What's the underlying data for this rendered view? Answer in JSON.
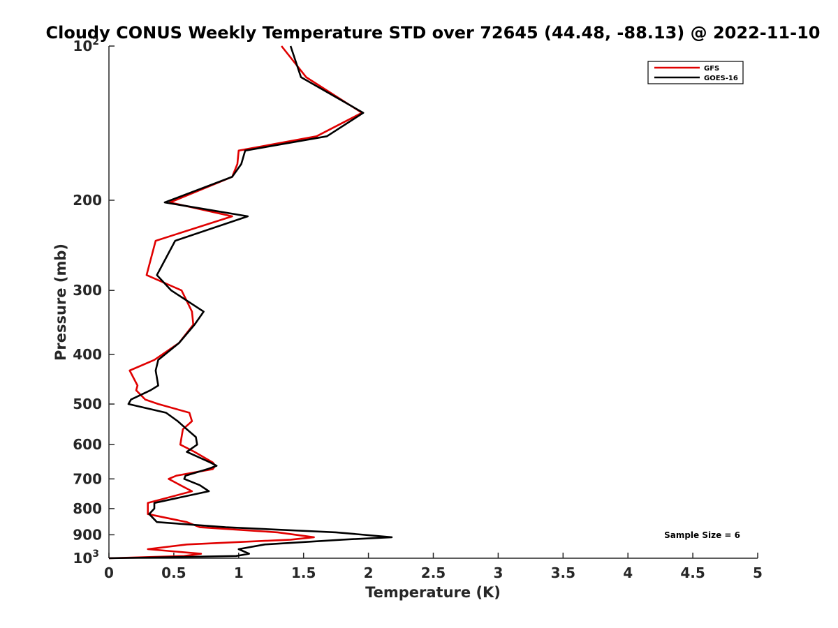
{
  "chart_data": {
    "type": "line",
    "title": "Cloudy CONUS Weekly Temperature STD over 72645 (44.48, -88.13) @ 2022-11-10",
    "xlabel": "Temperature (K)",
    "ylabel": "Pressure (mb)",
    "xlim": [
      0,
      5
    ],
    "ylim": [
      100,
      1000
    ],
    "yscale": "log",
    "y_reversed": true,
    "xticks": [
      "0",
      "0.5",
      "1",
      "1.5",
      "2",
      "2.5",
      "3",
      "3.5",
      "4",
      "4.5",
      "5"
    ],
    "yticks": [
      {
        "value": 100,
        "label": "10",
        "sup": "2"
      },
      {
        "value": 200,
        "label": "200",
        "sup": ""
      },
      {
        "value": 300,
        "label": "300",
        "sup": ""
      },
      {
        "value": 400,
        "label": "400",
        "sup": ""
      },
      {
        "value": 500,
        "label": "500",
        "sup": ""
      },
      {
        "value": 600,
        "label": "600",
        "sup": ""
      },
      {
        "value": 700,
        "label": "700",
        "sup": ""
      },
      {
        "value": 800,
        "label": "800",
        "sup": ""
      },
      {
        "value": 900,
        "label": "900",
        "sup": ""
      },
      {
        "value": 1000,
        "label": "10",
        "sup": "3"
      }
    ],
    "legend_position": "top-right",
    "annotation": "Sample Size = 6",
    "series": [
      {
        "name": "GFS",
        "color": "#e00000",
        "x": [
          1.33,
          1.52,
          1.95,
          1.6,
          1.0,
          0.99,
          0.95,
          0.47,
          0.95,
          0.36,
          0.29,
          0.56,
          0.64,
          0.65,
          0.54,
          0.35,
          0.16,
          0.22,
          0.21,
          0.28,
          0.38,
          0.62,
          0.64,
          0.57,
          0.56,
          0.55,
          0.66,
          0.8,
          0.82,
          0.8,
          0.52,
          0.46,
          0.55,
          0.64,
          0.3,
          0.3,
          0.3,
          0.6,
          0.7,
          1.3,
          1.58,
          1.4,
          0.6,
          0.3,
          0.71,
          0.58,
          0.0
        ],
        "y": [
          100,
          115,
          135,
          150,
          160,
          170,
          180,
          202,
          215,
          240,
          280,
          300,
          330,
          350,
          380,
          410,
          430,
          460,
          470,
          490,
          500,
          520,
          540,
          560,
          580,
          600,
          620,
          650,
          660,
          670,
          690,
          700,
          720,
          740,
          780,
          800,
          820,
          850,
          870,
          890,
          910,
          920,
          940,
          960,
          980,
          990,
          1000
        ]
      },
      {
        "name": "GOES-16",
        "color": "#000000",
        "x": [
          1.4,
          1.48,
          1.96,
          1.68,
          1.05,
          1.02,
          0.95,
          0.43,
          1.07,
          0.51,
          0.37,
          0.48,
          0.73,
          0.66,
          0.54,
          0.38,
          0.36,
          0.38,
          0.32,
          0.17,
          0.15,
          0.44,
          0.53,
          0.6,
          0.67,
          0.68,
          0.6,
          0.78,
          0.83,
          0.76,
          0.59,
          0.58,
          0.7,
          0.77,
          0.35,
          0.35,
          0.31,
          0.37,
          0.9,
          1.75,
          2.18,
          1.8,
          1.2,
          1.0,
          1.08,
          0.98,
          0.0
        ],
        "y": [
          100,
          115,
          135,
          150,
          160,
          170,
          180,
          202,
          215,
          240,
          280,
          300,
          330,
          350,
          380,
          410,
          430,
          460,
          470,
          490,
          500,
          520,
          540,
          560,
          580,
          600,
          620,
          650,
          660,
          670,
          690,
          700,
          720,
          740,
          780,
          800,
          820,
          850,
          870,
          890,
          910,
          920,
          940,
          960,
          980,
          990,
          1000
        ]
      }
    ]
  }
}
